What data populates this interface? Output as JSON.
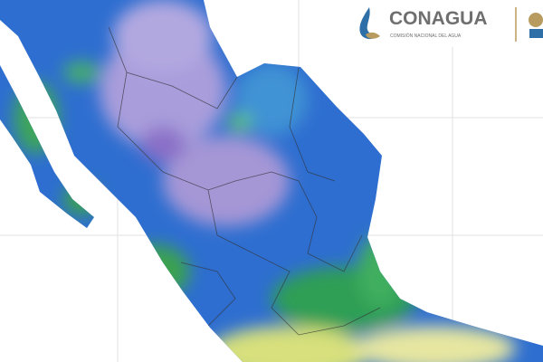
{
  "logo": {
    "name": "CONAGUA",
    "subtitle": "COMISIÓN NACIONAL DEL AGUA"
  }
}
